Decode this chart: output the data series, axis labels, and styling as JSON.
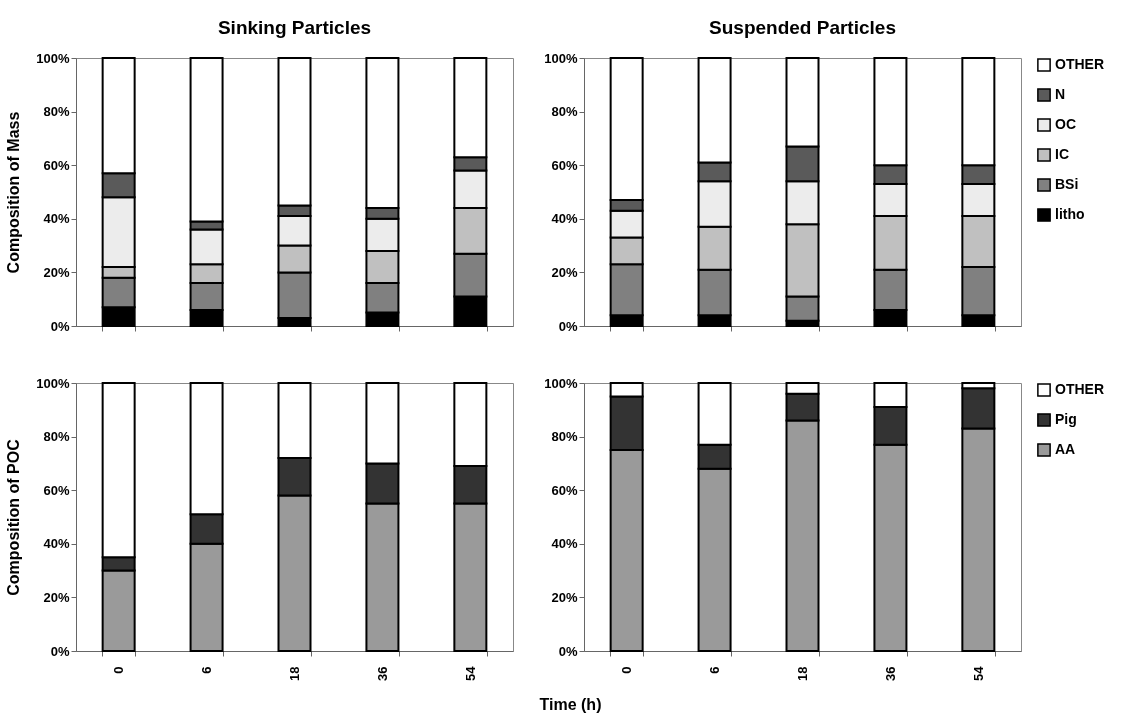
{
  "chart_data": [
    {
      "type": "bar",
      "title": "Sinking Particles",
      "ylabel": "Composition of Mass",
      "stacked": true,
      "tick_labels": "y",
      "categories": [
        "0",
        "6",
        "18",
        "36",
        "54"
      ],
      "ylim": [
        0,
        100
      ],
      "yticks": [
        {
          "value": 0,
          "label": "0%"
        },
        {
          "value": 20,
          "label": "20%"
        },
        {
          "value": 40,
          "label": "40%"
        },
        {
          "value": 60,
          "label": "60%"
        },
        {
          "value": 80,
          "label": "80%"
        },
        {
          "value": 100,
          "label": "100%"
        }
      ],
      "series": [
        {
          "color": "#000000",
          "values": [
            7,
            6,
            3,
            5,
            11
          ]
        },
        {
          "color": "#808080",
          "values": [
            11,
            10,
            17,
            11,
            16
          ]
        },
        {
          "color": "#c0c0c0",
          "values": [
            4,
            7,
            10,
            12,
            17
          ]
        },
        {
          "color": "#ececec",
          "values": [
            26,
            13,
            11,
            12,
            14
          ]
        },
        {
          "color": "#5a5a5a",
          "values": [
            9,
            3,
            4,
            4,
            5
          ]
        },
        {
          "color": "#ffffff",
          "values": [
            43,
            61,
            55,
            56,
            37
          ]
        }
      ]
    },
    {
      "type": "bar",
      "title": "Suspended Particles",
      "stacked": true,
      "tick_labels": "y",
      "legend": "right",
      "categories": [
        "0",
        "6",
        "18",
        "36",
        "54"
      ],
      "ylim": [
        0,
        100
      ],
      "yticks": [
        {
          "value": 0,
          "label": "0%"
        },
        {
          "value": 20,
          "label": "20%"
        },
        {
          "value": 40,
          "label": "40%"
        },
        {
          "value": 60,
          "label": "60%"
        },
        {
          "value": 80,
          "label": "80%"
        },
        {
          "value": 100,
          "label": "100%"
        }
      ],
      "series": [
        {
          "name": "litho",
          "color": "#000000",
          "values": [
            4,
            4,
            2,
            6,
            4
          ]
        },
        {
          "name": "BSi",
          "color": "#808080",
          "values": [
            19,
            17,
            9,
            15,
            18
          ]
        },
        {
          "name": "IC",
          "color": "#c0c0c0",
          "values": [
            10,
            16,
            27,
            20,
            19
          ]
        },
        {
          "name": "OC",
          "color": "#ececec",
          "values": [
            10,
            17,
            16,
            12,
            12
          ]
        },
        {
          "name": "N",
          "color": "#5a5a5a",
          "values": [
            4,
            7,
            13,
            7,
            7
          ]
        },
        {
          "name": "OTHER",
          "color": "#ffffff",
          "values": [
            53,
            39,
            33,
            40,
            40
          ]
        }
      ]
    },
    {
      "type": "bar",
      "ylabel": "Composition of POC",
      "xlabel": "Time (h)",
      "stacked": true,
      "categories": [
        "0",
        "6",
        "18",
        "36",
        "54"
      ],
      "ylim": [
        0,
        100
      ],
      "yticks": [
        {
          "value": 0,
          "label": "0%"
        },
        {
          "value": 20,
          "label": "20%"
        },
        {
          "value": 40,
          "label": "40%"
        },
        {
          "value": 60,
          "label": "60%"
        },
        {
          "value": 80,
          "label": "80%"
        },
        {
          "value": 100,
          "label": "100%"
        }
      ],
      "series": [
        {
          "color": "#9a9a9a",
          "values": [
            30,
            40,
            58,
            55,
            55
          ]
        },
        {
          "color": "#333333",
          "values": [
            5,
            11,
            14,
            15,
            14
          ]
        },
        {
          "color": "#ffffff",
          "values": [
            65,
            49,
            28,
            30,
            31
          ]
        }
      ]
    },
    {
      "type": "bar",
      "stacked": true,
      "legend": "right",
      "categories": [
        "0",
        "6",
        "18",
        "36",
        "54"
      ],
      "ylim": [
        0,
        100
      ],
      "yticks": [
        {
          "value": 0,
          "label": "0%"
        },
        {
          "value": 20,
          "label": "20%"
        },
        {
          "value": 40,
          "label": "40%"
        },
        {
          "value": 60,
          "label": "60%"
        },
        {
          "value": 80,
          "label": "80%"
        },
        {
          "value": 100,
          "label": "100%"
        }
      ],
      "series": [
        {
          "name": "AA",
          "color": "#9a9a9a",
          "values": [
            75,
            68,
            86,
            77,
            83
          ]
        },
        {
          "name": "Pig",
          "color": "#333333",
          "values": [
            20,
            9,
            10,
            14,
            15
          ]
        },
        {
          "name": "OTHER",
          "color": "#ffffff",
          "values": [
            5,
            23,
            4,
            9,
            2
          ]
        }
      ]
    }
  ]
}
